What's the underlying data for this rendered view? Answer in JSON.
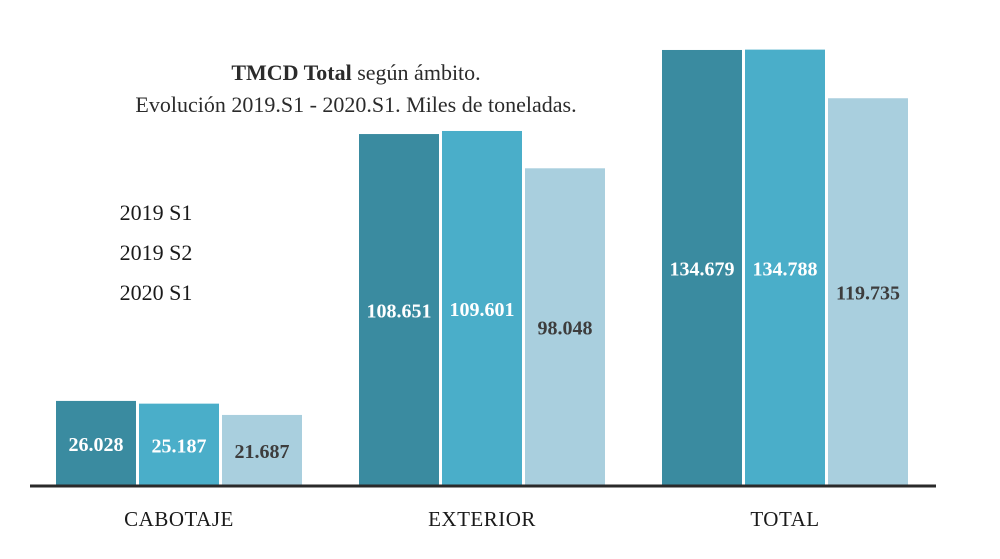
{
  "chart_data": {
    "type": "bar",
    "title_bold": "TMCD Total",
    "title_rest": " según ámbito.",
    "subtitle": "Evolución 2019.S1 - 2020.S1.  Miles de toneladas.",
    "categories": [
      "CABOTAJE",
      "EXTERIOR",
      "TOTAL"
    ],
    "series": [
      {
        "name": "2019 S1",
        "color": "#3a8ba0",
        "label_color": "#ffffff",
        "values": [
          26.028,
          108.651,
          134.679
        ],
        "labels": [
          "26.028",
          "108.651",
          "134.679"
        ]
      },
      {
        "name": "2019 S2",
        "color": "#4aaec9",
        "label_color": "#ffffff",
        "values": [
          25.187,
          109.601,
          134.788
        ],
        "labels": [
          "25.187",
          "109.601",
          "134.788"
        ]
      },
      {
        "name": "2020 S1",
        "color": "#a9cfde",
        "label_color": "#3d3d3d",
        "values": [
          21.687,
          98.048,
          119.735
        ],
        "labels": [
          "21.687",
          "98.048",
          "119.735"
        ]
      }
    ],
    "ylim": [
      0,
      150
    ],
    "grid": false,
    "legend_position": "left"
  }
}
